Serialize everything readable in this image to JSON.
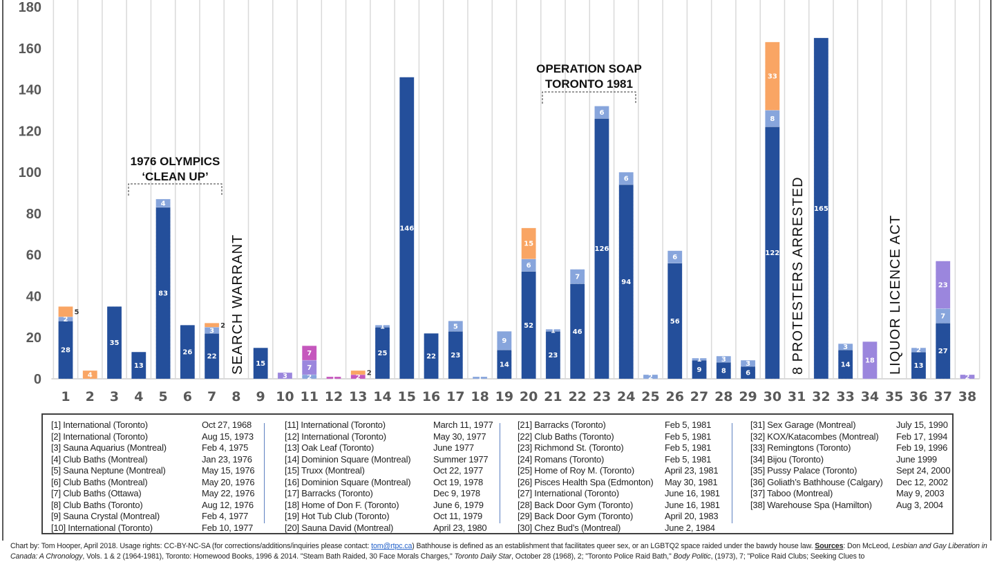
{
  "chart_data": {
    "type": "bar",
    "stacked": true,
    "categories": [
      "1",
      "2",
      "3",
      "4",
      "5",
      "6",
      "7",
      "8",
      "9",
      "10",
      "11",
      "12",
      "13",
      "14",
      "15",
      "16",
      "17",
      "18",
      "19",
      "20",
      "21",
      "22",
      "23",
      "24",
      "25",
      "26",
      "27",
      "28",
      "29",
      "30",
      "31",
      "32",
      "33",
      "34",
      "35",
      "36",
      "37",
      "38"
    ],
    "ylim": [
      0,
      180
    ],
    "yticks": [
      0,
      20,
      40,
      60,
      80,
      100,
      120,
      140,
      160,
      180
    ],
    "grid": "vertical separators between categories",
    "series": [
      {
        "color": "#244f9b",
        "values": [
          28,
          0,
          35,
          13,
          83,
          26,
          22,
          0,
          15,
          0,
          0,
          0,
          0,
          25,
          146,
          22,
          23,
          0,
          14,
          52,
          23,
          46,
          126,
          94,
          0,
          56,
          9,
          8,
          6,
          122,
          0,
          165,
          14,
          0,
          0,
          13,
          27,
          0
        ]
      },
      {
        "color": "#87a5dc",
        "values": [
          2,
          0,
          0,
          0,
          4,
          0,
          3,
          0,
          0,
          0,
          2,
          0,
          0,
          1,
          0,
          0,
          5,
          1,
          9,
          6,
          1,
          7,
          6,
          6,
          2,
          6,
          1,
          3,
          3,
          8,
          0,
          0,
          3,
          0,
          0,
          2,
          7,
          0
        ]
      },
      {
        "color": "#9b86dd",
        "values": [
          0,
          0,
          0,
          0,
          0,
          0,
          0,
          0,
          0,
          3,
          7,
          0,
          0,
          0,
          0,
          0,
          0,
          0,
          0,
          0,
          0,
          0,
          0,
          0,
          0,
          0,
          0,
          0,
          0,
          0,
          0,
          0,
          0,
          18,
          0,
          0,
          23,
          2
        ]
      },
      {
        "color": "#c557bd",
        "values": [
          0,
          0,
          0,
          0,
          0,
          0,
          0,
          0,
          0,
          0,
          7,
          1,
          2,
          0,
          0,
          0,
          0,
          0,
          0,
          0,
          0,
          0,
          0,
          0,
          0,
          0,
          0,
          0,
          0,
          0,
          0,
          0,
          0,
          0,
          0,
          0,
          0,
          0
        ]
      },
      {
        "color": "#f9a564",
        "values": [
          5,
          4,
          0,
          0,
          0,
          0,
          2,
          0,
          0,
          0,
          0,
          0,
          2,
          0,
          0,
          0,
          0,
          0,
          0,
          15,
          0,
          0,
          0,
          0,
          0,
          0,
          0,
          0,
          0,
          33,
          0,
          0,
          0,
          0,
          0,
          0,
          0,
          0
        ]
      }
    ],
    "annotations": {
      "olympics": {
        "line1": "1976 OLYMPICS",
        "line2": "‘CLEAN UP’",
        "span": [
          "4",
          "7"
        ]
      },
      "soap": {
        "line1": "OPERATION SOAP",
        "line2": "TORONTO 1981",
        "span": [
          "21",
          "24"
        ]
      },
      "search": {
        "text": "SEARCH WARRANT",
        "category": "8"
      },
      "protesters": {
        "text": "8 PROTESTERS ARRESTED",
        "category": "31"
      },
      "liquor": {
        "text": "LIQUOR LICENCE ACT",
        "category": "35"
      }
    }
  },
  "legend": [
    [
      [
        "[1] International (Toronto)",
        "Oct 27, 1968"
      ],
      [
        "[2] International (Toronto)",
        "Aug 15, 1973"
      ],
      [
        "[3] Sauna Aquarius (Montreal)",
        "Feb 4, 1975"
      ],
      [
        "[4] Club Baths (Montreal)",
        "Jan 23, 1976"
      ],
      [
        "[5] Sauna Neptune (Montreal)",
        "May 15, 1976"
      ],
      [
        "[6] Club Baths (Montreal)",
        "May 20, 1976"
      ],
      [
        "[7] Club Baths (Ottawa)",
        "May 22, 1976"
      ],
      [
        "[8] Club Baths (Toronto)",
        "Aug 12, 1976"
      ],
      [
        "[9] Sauna Crystal (Montreal)",
        "Feb 4, 1977"
      ],
      [
        "[10] International (Toronto)",
        "Feb 10, 1977"
      ]
    ],
    [
      [
        "[11] International (Toronto)",
        "March 11, 1977"
      ],
      [
        "[12] International (Toronto)",
        "May 30, 1977"
      ],
      [
        "[13] Oak Leaf (Toronto)",
        "June 1977"
      ],
      [
        "[14] Dominion Square (Montreal)",
        "Summer 1977"
      ],
      [
        "[15] Truxx (Montreal)",
        "Oct 22, 1977"
      ],
      [
        "[16] Dominion Square (Montreal)",
        "Oct 19, 1978"
      ],
      [
        "[17] Barracks (Toronto)",
        "Dec 9, 1978"
      ],
      [
        "[18] Home of Don F. (Toronto)",
        "June 6, 1979"
      ],
      [
        "[19] Hot Tub Club (Toronto)",
        "Oct 11, 1979"
      ],
      [
        "[20] Sauna David (Montreal)",
        "April 23, 1980"
      ]
    ],
    [
      [
        "[21] Barracks (Toronto)",
        "Feb 5, 1981"
      ],
      [
        "[22] Club Baths (Toronto)",
        "Feb 5, 1981"
      ],
      [
        "[23] Richmond St. (Toronto)",
        "Feb 5, 1981"
      ],
      [
        "[24] Romans (Toronto)",
        "Feb 5, 1981"
      ],
      [
        "[25] Home of Roy M. (Toronto)",
        "April 23, 1981"
      ],
      [
        "[26] Pisces Health Spa (Edmonton)",
        "May 30, 1981"
      ],
      [
        "[27] International (Toronto)",
        "June 16, 1981"
      ],
      [
        "[28] Back Door Gym (Toronto)",
        "June 16, 1981"
      ],
      [
        "[29] Back Door Gym (Toronto)",
        "April 20, 1983"
      ],
      [
        "[30] Chez Bud’s (Montreal)",
        "June 2, 1984"
      ]
    ],
    [
      [
        "[31] Sex Garage (Montreal)",
        "July 15, 1990"
      ],
      [
        "[32] KOX/Katacombes (Montreal)",
        "Feb 17, 1994"
      ],
      [
        "[33] Remingtons (Toronto)",
        "Feb 19, 1996"
      ],
      [
        "[34] Bijou (Toronto)",
        "June 1999"
      ],
      [
        "[35] Pussy Palace (Toronto)",
        "Sept 24, 2000"
      ],
      [
        "[36] Goliath’s Bathhouse (Calgary)",
        "Dec 12, 2002"
      ],
      [
        "[37] Taboo (Montreal)",
        "May 9, 2003"
      ],
      [
        "[38] Warehouse Spa (Hamilton)",
        "Aug 3, 2004"
      ]
    ]
  ],
  "footer": {
    "t1": "Chart by: Tom Hooper, April 2018. Usage rights: CC-BY-NC-SA (for corrections/additions/inquiries please contact: ",
    "email": "tom@rtpc.ca",
    "t2": ") Bathhouse is defined as an establishment that facilitates queer sex, or an LGBTQ2 space raided under the bawdy house law. ",
    "sources": "Sources",
    "t3": ": Don McLeod, ",
    "i1": "Lesbian and Gay Liberation in Canada: A Chronology",
    "t4": ", Vols. 1 & 2 (1964-1981), Toronto: Homewood Books, 1996 & 2014. \"Steam Bath Raided, 30 Face Morals Charges,\" ",
    "i2": "Toronto Daily Star",
    "t5": ", October 28 (1968), 2; \"Toronto Police Raid Bath,\" ",
    "i3": "Body Politic",
    "t6": ", (1973), 7; \"Police Raid Clubs; Seeking Clues to"
  }
}
